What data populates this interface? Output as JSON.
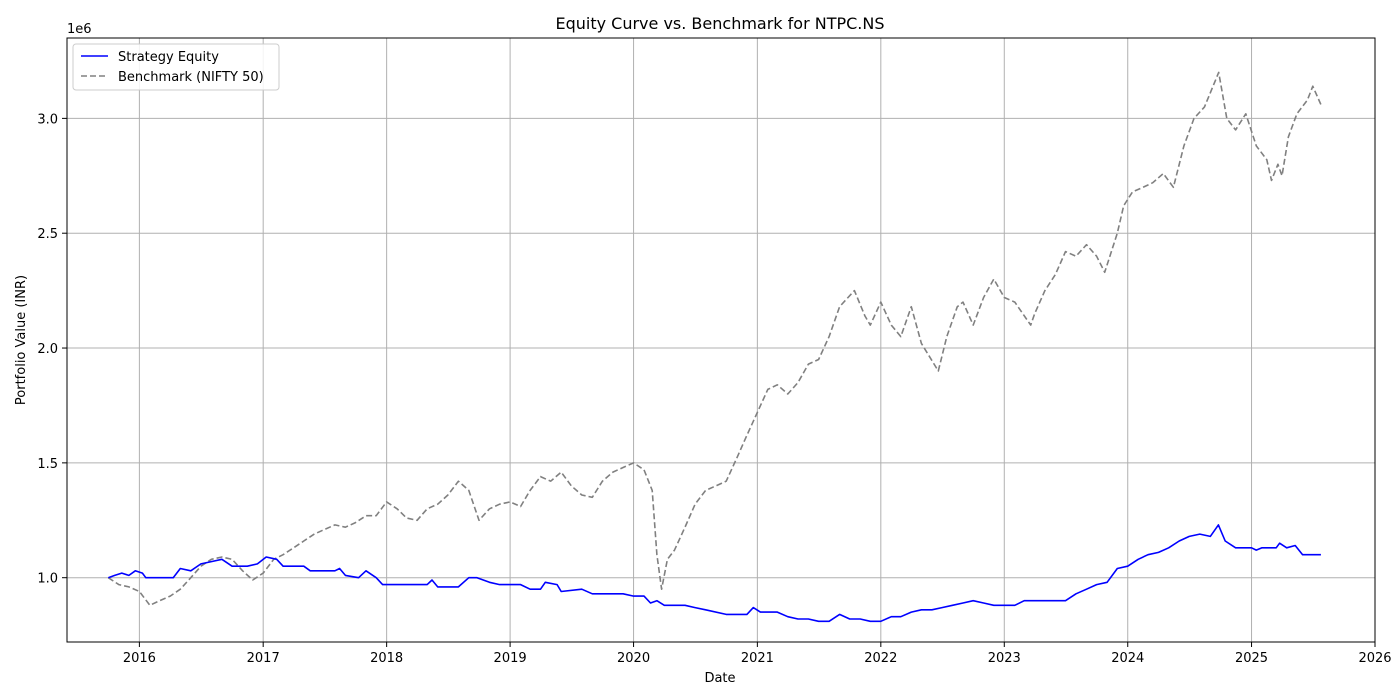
{
  "chart_data": {
    "type": "line",
    "title": "Equity Curve vs. Benchmark for NTPC.NS",
    "xlabel": "Date",
    "ylabel": "Portfolio Value (INR)",
    "y_offset_label": "1e6",
    "x_ticks": [
      "2016",
      "2017",
      "2018",
      "2019",
      "2020",
      "2021",
      "2022",
      "2023",
      "2024",
      "2025",
      "2026"
    ],
    "y_ticks": [
      "1.0",
      "1.5",
      "2.0",
      "2.5",
      "3.0"
    ],
    "xlim": [
      "2015-06-01",
      "2026-01-01"
    ],
    "ylim": [
      0.72,
      3.35
    ],
    "grid": true,
    "legend_position": "top-left",
    "series": [
      {
        "name": "Strategy Equity",
        "color": "#0000ff",
        "style": "solid",
        "points": [
          [
            "2015-10-01",
            1.0
          ],
          [
            "2015-10-20",
            1.01
          ],
          [
            "2015-11-10",
            1.02
          ],
          [
            "2015-12-01",
            1.01
          ],
          [
            "2015-12-20",
            1.03
          ],
          [
            "2016-01-10",
            1.02
          ],
          [
            "2016-01-20",
            1.0
          ],
          [
            "2016-03-01",
            1.0
          ],
          [
            "2016-04-10",
            1.0
          ],
          [
            "2016-05-01",
            1.04
          ],
          [
            "2016-06-01",
            1.03
          ],
          [
            "2016-07-01",
            1.06
          ],
          [
            "2016-08-01",
            1.07
          ],
          [
            "2016-09-01",
            1.08
          ],
          [
            "2016-10-01",
            1.05
          ],
          [
            "2016-11-15",
            1.05
          ],
          [
            "2016-12-15",
            1.06
          ],
          [
            "2017-01-10",
            1.09
          ],
          [
            "2017-02-10",
            1.08
          ],
          [
            "2017-03-01",
            1.05
          ],
          [
            "2017-05-01",
            1.05
          ],
          [
            "2017-05-20",
            1.03
          ],
          [
            "2017-08-01",
            1.03
          ],
          [
            "2017-08-15",
            1.04
          ],
          [
            "2017-09-01",
            1.01
          ],
          [
            "2017-10-10",
            1.0
          ],
          [
            "2017-11-01",
            1.03
          ],
          [
            "2017-12-01",
            1.0
          ],
          [
            "2017-12-20",
            0.97
          ],
          [
            "2018-05-01",
            0.97
          ],
          [
            "2018-05-15",
            0.99
          ],
          [
            "2018-06-01",
            0.96
          ],
          [
            "2018-08-01",
            0.96
          ],
          [
            "2018-09-01",
            1.0
          ],
          [
            "2018-09-25",
            1.0
          ],
          [
            "2018-11-01",
            0.98
          ],
          [
            "2018-12-01",
            0.97
          ],
          [
            "2019-02-01",
            0.97
          ],
          [
            "2019-03-01",
            0.95
          ],
          [
            "2019-04-01",
            0.95
          ],
          [
            "2019-04-15",
            0.98
          ],
          [
            "2019-05-20",
            0.97
          ],
          [
            "2019-06-01",
            0.94
          ],
          [
            "2019-08-01",
            0.95
          ],
          [
            "2019-09-01",
            0.93
          ],
          [
            "2019-12-01",
            0.93
          ],
          [
            "2020-01-01",
            0.92
          ],
          [
            "2020-02-01",
            0.92
          ],
          [
            "2020-02-20",
            0.89
          ],
          [
            "2020-03-10",
            0.9
          ],
          [
            "2020-04-01",
            0.88
          ],
          [
            "2020-06-01",
            0.88
          ],
          [
            "2020-07-01",
            0.87
          ],
          [
            "2020-08-01",
            0.86
          ],
          [
            "2020-10-01",
            0.84
          ],
          [
            "2020-12-01",
            0.84
          ],
          [
            "2020-12-20",
            0.87
          ],
          [
            "2021-01-10",
            0.85
          ],
          [
            "2021-03-01",
            0.85
          ],
          [
            "2021-04-01",
            0.83
          ],
          [
            "2021-05-01",
            0.82
          ],
          [
            "2021-06-01",
            0.82
          ],
          [
            "2021-07-01",
            0.81
          ],
          [
            "2021-08-01",
            0.81
          ],
          [
            "2021-09-01",
            0.84
          ],
          [
            "2021-10-01",
            0.82
          ],
          [
            "2021-11-01",
            0.82
          ],
          [
            "2021-12-01",
            0.81
          ],
          [
            "2022-01-01",
            0.81
          ],
          [
            "2022-02-01",
            0.83
          ],
          [
            "2022-03-01",
            0.83
          ],
          [
            "2022-04-01",
            0.85
          ],
          [
            "2022-05-01",
            0.86
          ],
          [
            "2022-06-01",
            0.86
          ],
          [
            "2022-07-01",
            0.87
          ],
          [
            "2022-08-01",
            0.88
          ],
          [
            "2022-09-01",
            0.89
          ],
          [
            "2022-10-01",
            0.9
          ],
          [
            "2022-11-01",
            0.89
          ],
          [
            "2022-12-01",
            0.88
          ],
          [
            "2023-01-01",
            0.88
          ],
          [
            "2023-02-01",
            0.88
          ],
          [
            "2023-03-01",
            0.9
          ],
          [
            "2023-07-01",
            0.9
          ],
          [
            "2023-08-01",
            0.93
          ],
          [
            "2023-09-01",
            0.95
          ],
          [
            "2023-10-01",
            0.97
          ],
          [
            "2023-11-01",
            0.98
          ],
          [
            "2023-12-01",
            1.04
          ],
          [
            "2024-01-01",
            1.05
          ],
          [
            "2024-02-01",
            1.08
          ],
          [
            "2024-03-01",
            1.1
          ],
          [
            "2024-04-01",
            1.11
          ],
          [
            "2024-05-01",
            1.13
          ],
          [
            "2024-06-01",
            1.16
          ],
          [
            "2024-07-01",
            1.18
          ],
          [
            "2024-08-01",
            1.19
          ],
          [
            "2024-09-01",
            1.18
          ],
          [
            "2024-09-25",
            1.23
          ],
          [
            "2024-10-15",
            1.16
          ],
          [
            "2024-11-15",
            1.13
          ],
          [
            "2025-01-01",
            1.13
          ],
          [
            "2025-01-15",
            1.12
          ],
          [
            "2025-02-01",
            1.13
          ],
          [
            "2025-03-15",
            1.13
          ],
          [
            "2025-03-25",
            1.15
          ],
          [
            "2025-04-15",
            1.13
          ],
          [
            "2025-05-10",
            1.14
          ],
          [
            "2025-06-01",
            1.1
          ],
          [
            "2025-07-25",
            1.1
          ]
        ]
      },
      {
        "name": "Benchmark (NIFTY 50)",
        "color": "#808080",
        "style": "dashed",
        "points": [
          [
            "2015-10-01",
            1.0
          ],
          [
            "2015-11-01",
            0.97
          ],
          [
            "2015-12-01",
            0.96
          ],
          [
            "2016-01-01",
            0.94
          ],
          [
            "2016-02-01",
            0.88
          ],
          [
            "2016-03-01",
            0.9
          ],
          [
            "2016-04-01",
            0.92
          ],
          [
            "2016-05-01",
            0.95
          ],
          [
            "2016-06-01",
            1.0
          ],
          [
            "2016-07-01",
            1.05
          ],
          [
            "2016-08-01",
            1.08
          ],
          [
            "2016-09-01",
            1.09
          ],
          [
            "2016-10-01",
            1.08
          ],
          [
            "2016-11-01",
            1.03
          ],
          [
            "2016-12-01",
            0.99
          ],
          [
            "2017-01-01",
            1.02
          ],
          [
            "2017-02-01",
            1.08
          ],
          [
            "2017-03-01",
            1.1
          ],
          [
            "2017-04-01",
            1.13
          ],
          [
            "2017-05-01",
            1.16
          ],
          [
            "2017-06-01",
            1.19
          ],
          [
            "2017-07-01",
            1.21
          ],
          [
            "2017-08-01",
            1.23
          ],
          [
            "2017-09-01",
            1.22
          ],
          [
            "2017-10-01",
            1.24
          ],
          [
            "2017-11-01",
            1.27
          ],
          [
            "2017-12-01",
            1.27
          ],
          [
            "2018-01-01",
            1.33
          ],
          [
            "2018-02-01",
            1.3
          ],
          [
            "2018-03-01",
            1.26
          ],
          [
            "2018-04-01",
            1.25
          ],
          [
            "2018-05-01",
            1.3
          ],
          [
            "2018-06-01",
            1.32
          ],
          [
            "2018-07-01",
            1.36
          ],
          [
            "2018-08-01",
            1.42
          ],
          [
            "2018-09-01",
            1.38
          ],
          [
            "2018-10-01",
            1.25
          ],
          [
            "2018-11-01",
            1.3
          ],
          [
            "2018-12-01",
            1.32
          ],
          [
            "2019-01-01",
            1.33
          ],
          [
            "2019-02-01",
            1.31
          ],
          [
            "2019-03-01",
            1.38
          ],
          [
            "2019-04-01",
            1.44
          ],
          [
            "2019-05-01",
            1.42
          ],
          [
            "2019-06-01",
            1.46
          ],
          [
            "2019-07-01",
            1.4
          ],
          [
            "2019-08-01",
            1.36
          ],
          [
            "2019-09-01",
            1.35
          ],
          [
            "2019-10-01",
            1.42
          ],
          [
            "2019-11-01",
            1.46
          ],
          [
            "2019-12-01",
            1.48
          ],
          [
            "2020-01-01",
            1.5
          ],
          [
            "2020-02-01",
            1.47
          ],
          [
            "2020-02-25",
            1.38
          ],
          [
            "2020-03-10",
            1.1
          ],
          [
            "2020-03-24",
            0.95
          ],
          [
            "2020-04-10",
            1.08
          ],
          [
            "2020-05-01",
            1.12
          ],
          [
            "2020-06-01",
            1.22
          ],
          [
            "2020-07-01",
            1.32
          ],
          [
            "2020-08-01",
            1.38
          ],
          [
            "2020-09-01",
            1.4
          ],
          [
            "2020-10-01",
            1.42
          ],
          [
            "2020-11-01",
            1.52
          ],
          [
            "2020-12-01",
            1.62
          ],
          [
            "2021-01-01",
            1.72
          ],
          [
            "2021-02-01",
            1.82
          ],
          [
            "2021-03-01",
            1.84
          ],
          [
            "2021-04-01",
            1.8
          ],
          [
            "2021-05-01",
            1.85
          ],
          [
            "2021-06-01",
            1.93
          ],
          [
            "2021-07-01",
            1.95
          ],
          [
            "2021-08-01",
            2.05
          ],
          [
            "2021-09-01",
            2.18
          ],
          [
            "2021-10-15",
            2.25
          ],
          [
            "2021-11-15",
            2.14
          ],
          [
            "2021-12-01",
            2.1
          ],
          [
            "2022-01-01",
            2.2
          ],
          [
            "2022-02-01",
            2.1
          ],
          [
            "2022-03-01",
            2.05
          ],
          [
            "2022-04-01",
            2.18
          ],
          [
            "2022-05-01",
            2.02
          ],
          [
            "2022-06-20",
            1.9
          ],
          [
            "2022-07-15",
            2.05
          ],
          [
            "2022-08-15",
            2.18
          ],
          [
            "2022-09-01",
            2.2
          ],
          [
            "2022-10-01",
            2.1
          ],
          [
            "2022-11-01",
            2.22
          ],
          [
            "2022-12-01",
            2.3
          ],
          [
            "2023-01-01",
            2.22
          ],
          [
            "2023-02-01",
            2.2
          ],
          [
            "2023-03-20",
            2.1
          ],
          [
            "2023-04-01",
            2.15
          ],
          [
            "2023-05-01",
            2.25
          ],
          [
            "2023-06-01",
            2.32
          ],
          [
            "2023-07-01",
            2.42
          ],
          [
            "2023-08-01",
            2.4
          ],
          [
            "2023-09-01",
            2.45
          ],
          [
            "2023-10-01",
            2.4
          ],
          [
            "2023-10-25",
            2.33
          ],
          [
            "2023-12-01",
            2.5
          ],
          [
            "2023-12-20",
            2.62
          ],
          [
            "2024-01-15",
            2.68
          ],
          [
            "2024-02-15",
            2.7
          ],
          [
            "2024-03-15",
            2.72
          ],
          [
            "2024-04-15",
            2.76
          ],
          [
            "2024-05-15",
            2.7
          ],
          [
            "2024-06-15",
            2.88
          ],
          [
            "2024-07-15",
            3.0
          ],
          [
            "2024-08-15",
            3.05
          ],
          [
            "2024-09-26",
            3.2
          ],
          [
            "2024-10-20",
            3.0
          ],
          [
            "2024-11-15",
            2.95
          ],
          [
            "2024-12-15",
            3.02
          ],
          [
            "2025-01-15",
            2.88
          ],
          [
            "2025-02-15",
            2.82
          ],
          [
            "2025-03-01",
            2.73
          ],
          [
            "2025-03-20",
            2.8
          ],
          [
            "2025-04-01",
            2.75
          ],
          [
            "2025-04-20",
            2.92
          ],
          [
            "2025-05-15",
            3.02
          ],
          [
            "2025-06-15",
            3.08
          ],
          [
            "2025-07-01",
            3.14
          ],
          [
            "2025-07-25",
            3.06
          ]
        ]
      }
    ]
  }
}
